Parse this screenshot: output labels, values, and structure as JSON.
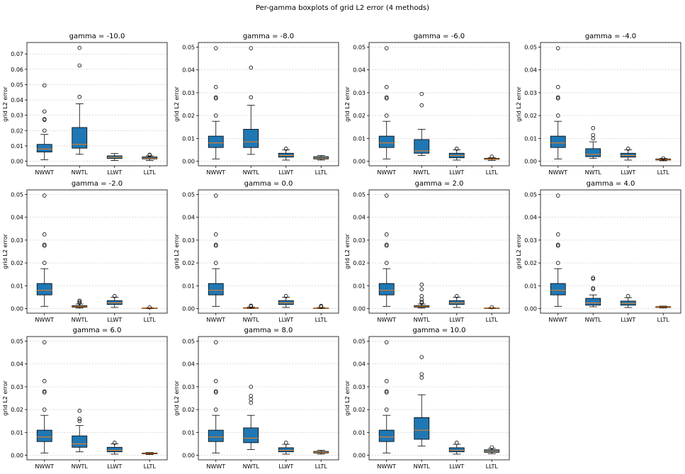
{
  "figure": {
    "suptitle": "Per-gamma boxplots of grid L2 error (4 methods)"
  },
  "colors": {
    "box_fill": "#1f77b4",
    "median": "#ff7f0e",
    "grid": "#b0b0b0",
    "axis": "#000000"
  },
  "chart_data": [
    {
      "type": "box",
      "title": "gamma = -10.0",
      "ylabel": "grid L2 error",
      "categories": [
        "NWWT",
        "NWTL",
        "LLWT",
        "LLTL"
      ],
      "ylim": [
        -0.003,
        0.0775
      ],
      "yticks": [
        0.0,
        0.01,
        0.02,
        0.03,
        0.04,
        0.05,
        0.06,
        0.07
      ],
      "ytick_labels": [
        "0.00",
        "0.01",
        "0.02",
        "0.03",
        "0.04",
        "0.05",
        "0.06",
        "0.07"
      ],
      "grid": "y",
      "boxes": [
        {
          "q1": 0.006,
          "median": 0.008,
          "q3": 0.011,
          "whislo": 0.001,
          "whishi": 0.0175,
          "fliers": [
            0.02,
            0.027,
            0.0275,
            0.0325,
            0.0495
          ]
        },
        {
          "q1": 0.0085,
          "median": 0.011,
          "q3": 0.022,
          "whislo": 0.0045,
          "whishi": 0.0375,
          "fliers": [
            0.042,
            0.0625,
            0.074
          ]
        },
        {
          "q1": 0.0018,
          "median": 0.0025,
          "q3": 0.0035,
          "whislo": 0.0005,
          "whishi": 0.005,
          "fliers": []
        },
        {
          "q1": 0.0015,
          "median": 0.002,
          "q3": 0.0028,
          "whislo": 0.0005,
          "whishi": 0.0035,
          "fliers": [
            0.004,
            0.0042
          ]
        }
      ]
    },
    {
      "type": "box",
      "title": "gamma = -8.0",
      "ylabel": "grid L2 error",
      "categories": [
        "NWWT",
        "NWTL",
        "LLWT",
        "LLTL"
      ],
      "ylim": [
        -0.002,
        0.052
      ],
      "yticks": [
        0.0,
        0.01,
        0.02,
        0.03,
        0.04,
        0.05
      ],
      "ytick_labels": [
        "0.00",
        "0.01",
        "0.02",
        "0.03",
        "0.04",
        "0.05"
      ],
      "grid": "y",
      "boxes": [
        {
          "q1": 0.006,
          "median": 0.008,
          "q3": 0.011,
          "whislo": 0.001,
          "whishi": 0.0175,
          "fliers": [
            0.02,
            0.0275,
            0.028,
            0.0325,
            0.0495
          ]
        },
        {
          "q1": 0.006,
          "median": 0.0085,
          "q3": 0.014,
          "whislo": 0.003,
          "whishi": 0.0245,
          "fliers": [
            0.028,
            0.041,
            0.0495
          ]
        },
        {
          "q1": 0.0018,
          "median": 0.0025,
          "q3": 0.0035,
          "whislo": 0.0005,
          "whishi": 0.005,
          "fliers": [
            0.0055
          ]
        },
        {
          "q1": 0.001,
          "median": 0.0014,
          "q3": 0.002,
          "whislo": 0.0005,
          "whishi": 0.0025,
          "fliers": []
        }
      ]
    },
    {
      "type": "box",
      "title": "gamma = -6.0",
      "ylabel": "grid L2 error",
      "categories": [
        "NWWT",
        "NWTL",
        "LLWT",
        "LLTL"
      ],
      "ylim": [
        -0.002,
        0.052
      ],
      "yticks": [
        0.0,
        0.01,
        0.02,
        0.03,
        0.04,
        0.05
      ],
      "ytick_labels": [
        "0.00",
        "0.01",
        "0.02",
        "0.03",
        "0.04",
        "0.05"
      ],
      "grid": "y",
      "boxes": [
        {
          "q1": 0.006,
          "median": 0.008,
          "q3": 0.011,
          "whislo": 0.001,
          "whishi": 0.0175,
          "fliers": [
            0.02,
            0.0275,
            0.028,
            0.0325,
            0.0495
          ]
        },
        {
          "q1": 0.0035,
          "median": 0.0045,
          "q3": 0.0095,
          "whislo": 0.0025,
          "whishi": 0.014,
          "fliers": [
            0.0245,
            0.0295
          ]
        },
        {
          "q1": 0.0015,
          "median": 0.0025,
          "q3": 0.0035,
          "whislo": 0.0005,
          "whishi": 0.005,
          "fliers": [
            0.0055
          ]
        },
        {
          "q1": 0.0008,
          "median": 0.001,
          "q3": 0.0013,
          "whislo": 0.0004,
          "whishi": 0.0015,
          "fliers": [
            0.002
          ]
        }
      ]
    },
    {
      "type": "box",
      "title": "gamma = -4.0",
      "ylabel": "grid L2 error",
      "categories": [
        "NWWT",
        "NWTL",
        "LLWT",
        "LLTL"
      ],
      "ylim": [
        -0.002,
        0.052
      ],
      "yticks": [
        0.0,
        0.01,
        0.02,
        0.03,
        0.04,
        0.05
      ],
      "ytick_labels": [
        "0.00",
        "0.01",
        "0.02",
        "0.03",
        "0.04",
        "0.05"
      ],
      "grid": "y",
      "boxes": [
        {
          "q1": 0.006,
          "median": 0.008,
          "q3": 0.011,
          "whislo": 0.001,
          "whishi": 0.0175,
          "fliers": [
            0.02,
            0.0275,
            0.028,
            0.0325,
            0.0495
          ]
        },
        {
          "q1": 0.002,
          "median": 0.003,
          "q3": 0.0055,
          "whislo": 0.0012,
          "whishi": 0.0085,
          "fliers": [
            0.01,
            0.0115,
            0.0145
          ]
        },
        {
          "q1": 0.0018,
          "median": 0.0025,
          "q3": 0.0035,
          "whislo": 0.0005,
          "whishi": 0.005,
          "fliers": [
            0.0055
          ]
        },
        {
          "q1": 0.0005,
          "median": 0.0007,
          "q3": 0.001,
          "whislo": 0.0002,
          "whishi": 0.0012,
          "fliers": [
            0.0013
          ]
        }
      ]
    },
    {
      "type": "box",
      "title": "gamma = -2.0",
      "ylabel": "grid L2 error",
      "categories": [
        "NWWT",
        "NWTL",
        "LLWT",
        "LLTL"
      ],
      "ylim": [
        -0.002,
        0.052
      ],
      "yticks": [
        0.0,
        0.01,
        0.02,
        0.03,
        0.04,
        0.05
      ],
      "ytick_labels": [
        "0.00",
        "0.01",
        "0.02",
        "0.03",
        "0.04",
        "0.05"
      ],
      "grid": "y",
      "boxes": [
        {
          "q1": 0.006,
          "median": 0.008,
          "q3": 0.011,
          "whislo": 0.001,
          "whishi": 0.0175,
          "fliers": [
            0.02,
            0.0275,
            0.028,
            0.0325,
            0.0495
          ]
        },
        {
          "q1": 0.0006,
          "median": 0.0009,
          "q3": 0.0013,
          "whislo": 0.0002,
          "whishi": 0.002,
          "fliers": [
            0.0025,
            0.003,
            0.0035
          ]
        },
        {
          "q1": 0.0018,
          "median": 0.0025,
          "q3": 0.0035,
          "whislo": 0.0005,
          "whishi": 0.005,
          "fliers": [
            0.0055
          ]
        },
        {
          "q1": 0.0001,
          "median": 0.0002,
          "q3": 0.0003,
          "whislo": 0.0,
          "whishi": 0.0004,
          "fliers": [
            0.0005
          ]
        }
      ]
    },
    {
      "type": "box",
      "title": "gamma = 0.0",
      "ylabel": "grid L2 error",
      "categories": [
        "NWWT",
        "NWTL",
        "LLWT",
        "LLTL"
      ],
      "ylim": [
        -0.002,
        0.052
      ],
      "yticks": [
        0.0,
        0.01,
        0.02,
        0.03,
        0.04,
        0.05
      ],
      "ytick_labels": [
        "0.00",
        "0.01",
        "0.02",
        "0.03",
        "0.04",
        "0.05"
      ],
      "grid": "y",
      "boxes": [
        {
          "q1": 0.006,
          "median": 0.008,
          "q3": 0.011,
          "whislo": 0.001,
          "whishi": 0.0175,
          "fliers": [
            0.02,
            0.0275,
            0.028,
            0.0325,
            0.0495
          ]
        },
        {
          "q1": 0.0001,
          "median": 0.0002,
          "q3": 0.0004,
          "whislo": 0.0,
          "whishi": 0.0007,
          "fliers": [
            0.001,
            0.0013
          ]
        },
        {
          "q1": 0.0018,
          "median": 0.0025,
          "q3": 0.0035,
          "whislo": 0.0005,
          "whishi": 0.005,
          "fliers": [
            0.0055
          ]
        },
        {
          "q1": 0.0001,
          "median": 0.0002,
          "q3": 0.0003,
          "whislo": 0.0,
          "whishi": 0.0005,
          "fliers": [
            0.0008,
            0.0012
          ]
        }
      ]
    },
    {
      "type": "box",
      "title": "gamma = 2.0",
      "ylabel": "grid L2 error",
      "categories": [
        "NWWT",
        "NWTL",
        "LLWT",
        "LLTL"
      ],
      "ylim": [
        -0.002,
        0.052
      ],
      "yticks": [
        0.0,
        0.01,
        0.02,
        0.03,
        0.04,
        0.05
      ],
      "ytick_labels": [
        "0.00",
        "0.01",
        "0.02",
        "0.03",
        "0.04",
        "0.05"
      ],
      "grid": "y",
      "boxes": [
        {
          "q1": 0.006,
          "median": 0.008,
          "q3": 0.011,
          "whislo": 0.001,
          "whishi": 0.0175,
          "fliers": [
            0.02,
            0.0275,
            0.028,
            0.0325,
            0.0495
          ]
        },
        {
          "q1": 0.0006,
          "median": 0.0009,
          "q3": 0.0013,
          "whislo": 0.0002,
          "whishi": 0.002,
          "fliers": [
            0.0025,
            0.003,
            0.004,
            0.0055,
            0.0085,
            0.0105
          ]
        },
        {
          "q1": 0.0018,
          "median": 0.0025,
          "q3": 0.0035,
          "whislo": 0.0005,
          "whishi": 0.005,
          "fliers": [
            0.0055
          ]
        },
        {
          "q1": 0.0001,
          "median": 0.0002,
          "q3": 0.0003,
          "whislo": 0.0,
          "whishi": 0.0004,
          "fliers": [
            0.0006
          ]
        }
      ]
    },
    {
      "type": "box",
      "title": "gamma = 4.0",
      "ylabel": "grid L2 error",
      "categories": [
        "NWWT",
        "NWTL",
        "LLWT",
        "LLTL"
      ],
      "ylim": [
        -0.002,
        0.052
      ],
      "yticks": [
        0.0,
        0.01,
        0.02,
        0.03,
        0.04,
        0.05
      ],
      "ytick_labels": [
        "0.00",
        "0.01",
        "0.02",
        "0.03",
        "0.04",
        "0.05"
      ],
      "grid": "y",
      "boxes": [
        {
          "q1": 0.006,
          "median": 0.008,
          "q3": 0.011,
          "whislo": 0.001,
          "whishi": 0.0175,
          "fliers": [
            0.02,
            0.0275,
            0.028,
            0.0325,
            0.0495
          ]
        },
        {
          "q1": 0.0015,
          "median": 0.0025,
          "q3": 0.0045,
          "whislo": 0.0008,
          "whishi": 0.006,
          "fliers": [
            0.0085,
            0.009,
            0.013,
            0.0135
          ]
        },
        {
          "q1": 0.0015,
          "median": 0.0023,
          "q3": 0.0033,
          "whislo": 0.0005,
          "whishi": 0.0048,
          "fliers": [
            0.0055
          ]
        },
        {
          "q1": 0.0005,
          "median": 0.0007,
          "q3": 0.0009,
          "whislo": 0.0003,
          "whishi": 0.0011,
          "fliers": []
        }
      ]
    },
    {
      "type": "box",
      "title": "gamma = 6.0",
      "ylabel": "grid L2 error",
      "categories": [
        "NWWT",
        "NWTL",
        "LLWT",
        "LLTL"
      ],
      "ylim": [
        -0.002,
        0.052
      ],
      "yticks": [
        0.0,
        0.01,
        0.02,
        0.03,
        0.04,
        0.05
      ],
      "ytick_labels": [
        "0.00",
        "0.01",
        "0.02",
        "0.03",
        "0.04",
        "0.05"
      ],
      "grid": "y",
      "boxes": [
        {
          "q1": 0.006,
          "median": 0.008,
          "q3": 0.011,
          "whislo": 0.001,
          "whishi": 0.0175,
          "fliers": [
            0.02,
            0.0275,
            0.028,
            0.0325,
            0.0495
          ]
        },
        {
          "q1": 0.0035,
          "median": 0.005,
          "q3": 0.0085,
          "whislo": 0.0015,
          "whishi": 0.013,
          "fliers": [
            0.015,
            0.016,
            0.0195
          ]
        },
        {
          "q1": 0.0015,
          "median": 0.0022,
          "q3": 0.0035,
          "whislo": 0.0005,
          "whishi": 0.005,
          "fliers": [
            0.0055
          ]
        },
        {
          "q1": 0.0006,
          "median": 0.0008,
          "q3": 0.001,
          "whislo": 0.0003,
          "whishi": 0.0012,
          "fliers": []
        }
      ]
    },
    {
      "type": "box",
      "title": "gamma = 8.0",
      "ylabel": "grid L2 error",
      "categories": [
        "NWWT",
        "NWTL",
        "LLWT",
        "LLTL"
      ],
      "ylim": [
        -0.002,
        0.052
      ],
      "yticks": [
        0.0,
        0.01,
        0.02,
        0.03,
        0.04,
        0.05
      ],
      "ytick_labels": [
        "0.00",
        "0.01",
        "0.02",
        "0.03",
        "0.04",
        "0.05"
      ],
      "grid": "y",
      "boxes": [
        {
          "q1": 0.006,
          "median": 0.008,
          "q3": 0.011,
          "whislo": 0.001,
          "whishi": 0.0175,
          "fliers": [
            0.02,
            0.0275,
            0.028,
            0.0325,
            0.0495
          ]
        },
        {
          "q1": 0.0055,
          "median": 0.0075,
          "q3": 0.012,
          "whislo": 0.0025,
          "whishi": 0.0175,
          "fliers": [
            0.023,
            0.0245,
            0.026,
            0.03
          ]
        },
        {
          "q1": 0.0015,
          "median": 0.0022,
          "q3": 0.0033,
          "whislo": 0.0005,
          "whishi": 0.0048,
          "fliers": [
            0.0055
          ]
        },
        {
          "q1": 0.001,
          "median": 0.0013,
          "q3": 0.0017,
          "whislo": 0.0005,
          "whishi": 0.0022,
          "fliers": []
        }
      ]
    },
    {
      "type": "box",
      "title": "gamma = 10.0",
      "ylabel": "grid L2 error",
      "categories": [
        "NWWT",
        "NWTL",
        "LLWT",
        "LLTL"
      ],
      "ylim": [
        -0.002,
        0.052
      ],
      "yticks": [
        0.0,
        0.01,
        0.02,
        0.03,
        0.04,
        0.05
      ],
      "ytick_labels": [
        "0.00",
        "0.01",
        "0.02",
        "0.03",
        "0.04",
        "0.05"
      ],
      "grid": "y",
      "boxes": [
        {
          "q1": 0.006,
          "median": 0.008,
          "q3": 0.011,
          "whislo": 0.001,
          "whishi": 0.0175,
          "fliers": [
            0.02,
            0.0275,
            0.028,
            0.0325,
            0.0495
          ]
        },
        {
          "q1": 0.007,
          "median": 0.011,
          "q3": 0.0165,
          "whislo": 0.004,
          "whishi": 0.0265,
          "fliers": [
            0.034,
            0.0355,
            0.043
          ]
        },
        {
          "q1": 0.0015,
          "median": 0.0022,
          "q3": 0.0033,
          "whislo": 0.0005,
          "whishi": 0.0048,
          "fliers": [
            0.0055
          ]
        },
        {
          "q1": 0.0013,
          "median": 0.0018,
          "q3": 0.0024,
          "whislo": 0.0007,
          "whishi": 0.003,
          "fliers": [
            0.0035
          ]
        }
      ]
    }
  ]
}
